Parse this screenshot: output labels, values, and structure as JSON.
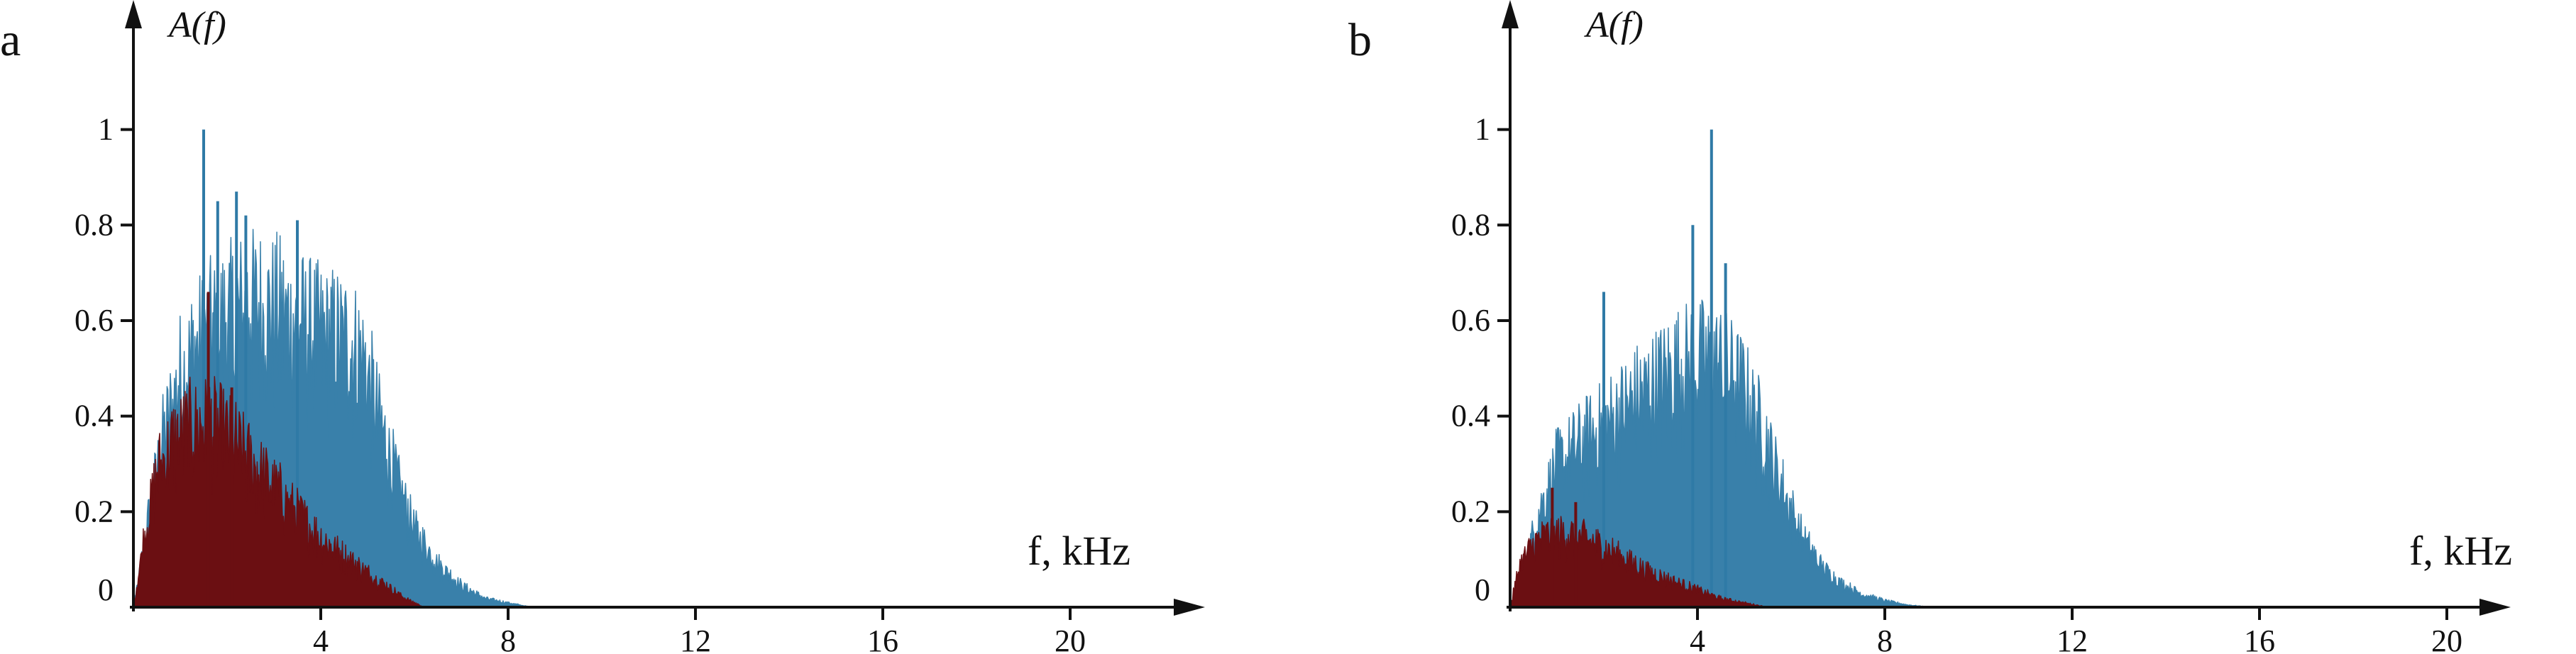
{
  "colors": {
    "blue": "#2f7aa6",
    "dark_red": "#6b0f12",
    "axis": "#111111"
  },
  "chart_data": [
    {
      "panel_label": "a",
      "type": "area",
      "ylabel": "A(f)",
      "xlabel": "f, kHz",
      "xlim": [
        0,
        22.5
      ],
      "ylim": [
        0,
        1.1
      ],
      "x_ticks": [
        4,
        8,
        12,
        16,
        20
      ],
      "y_ticks": [
        0,
        0.2,
        0.4,
        0.6,
        0.8,
        1
      ],
      "y_tick_labels": [
        "0",
        "0.2",
        "0.4",
        "0.6",
        "0.8",
        "1"
      ],
      "series": [
        {
          "color": "#2f7aa6",
          "x": [
            0,
            0.3,
            0.6,
            1.0,
            1.5,
            2.0,
            2.5,
            3.0,
            3.5,
            4.0,
            4.5,
            4.9,
            5.2,
            5.6,
            6.0,
            6.5,
            7.0,
            7.5,
            8.0,
            8.5
          ],
          "y": [
            0,
            0.2,
            0.38,
            0.55,
            0.63,
            0.67,
            0.7,
            0.69,
            0.66,
            0.63,
            0.62,
            0.58,
            0.45,
            0.3,
            0.18,
            0.1,
            0.05,
            0.02,
            0.01,
            0
          ],
          "peaks": [
            {
              "x": 1.5,
              "y": 1.0
            },
            {
              "x": 2.2,
              "y": 0.87
            },
            {
              "x": 2.4,
              "y": 0.82
            },
            {
              "x": 3.5,
              "y": 0.81
            },
            {
              "x": 1.8,
              "y": 0.85
            }
          ]
        },
        {
          "color": "#6b0f12",
          "x": [
            0,
            0.2,
            0.5,
            0.8,
            1.2,
            1.6,
            2.0,
            2.5,
            3.0,
            3.5,
            4.0,
            4.5,
            5.0,
            5.4,
            5.8,
            6.2
          ],
          "y": [
            0,
            0.15,
            0.32,
            0.38,
            0.42,
            0.43,
            0.4,
            0.34,
            0.28,
            0.22,
            0.16,
            0.12,
            0.08,
            0.05,
            0.02,
            0
          ],
          "peaks": [
            {
              "x": 1.6,
              "y": 0.66
            },
            {
              "x": 2.1,
              "y": 0.46
            }
          ]
        }
      ]
    },
    {
      "panel_label": "b",
      "type": "area",
      "ylabel": "A(f)",
      "xlabel": "f, kHz",
      "xlim": [
        0,
        22.5
      ],
      "ylim": [
        0,
        1.1
      ],
      "x_ticks": [
        4,
        8,
        12,
        16,
        20
      ],
      "y_ticks": [
        0,
        0.2,
        0.4,
        0.6,
        0.8,
        1
      ],
      "y_tick_labels": [
        "0",
        "0.2",
        "0.4",
        "0.6",
        "0.8",
        "1"
      ],
      "series": [
        {
          "color": "#2f7aa6",
          "x": [
            0,
            0.3,
            0.6,
            1.0,
            1.5,
            2.0,
            2.5,
            3.0,
            3.5,
            4.0,
            4.5,
            5.0,
            5.4,
            5.8,
            6.2,
            6.6,
            7.0,
            7.5,
            8.0,
            8.5,
            9.0
          ],
          "y": [
            0,
            0.1,
            0.22,
            0.33,
            0.38,
            0.42,
            0.47,
            0.51,
            0.55,
            0.57,
            0.56,
            0.5,
            0.4,
            0.28,
            0.17,
            0.1,
            0.06,
            0.03,
            0.015,
            0.005,
            0
          ],
          "peaks": [
            {
              "x": 4.3,
              "y": 1.0
            },
            {
              "x": 3.9,
              "y": 0.8
            },
            {
              "x": 4.6,
              "y": 0.72
            },
            {
              "x": 2.0,
              "y": 0.66
            }
          ]
        },
        {
          "color": "#6b0f12",
          "x": [
            0,
            0.2,
            0.5,
            0.8,
            1.2,
            1.6,
            2.0,
            2.5,
            3.0,
            3.5,
            4.0,
            4.5,
            5.0,
            5.5
          ],
          "y": [
            0,
            0.1,
            0.15,
            0.17,
            0.17,
            0.16,
            0.14,
            0.11,
            0.08,
            0.06,
            0.04,
            0.02,
            0.01,
            0
          ],
          "peaks": [
            {
              "x": 0.9,
              "y": 0.25
            },
            {
              "x": 1.4,
              "y": 0.22
            }
          ]
        }
      ]
    }
  ]
}
